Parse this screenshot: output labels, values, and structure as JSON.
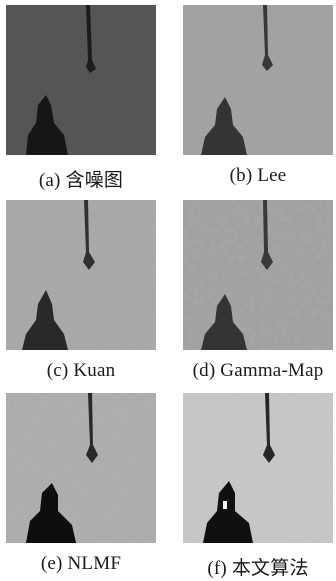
{
  "figure": {
    "panels": [
      {
        "caption": "(a) 含噪图"
      },
      {
        "caption": "(b) Lee"
      },
      {
        "caption": "(c) Kuan"
      },
      {
        "caption": "(d) Gamma-Map"
      },
      {
        "caption": "(e) NLMF"
      },
      {
        "caption": "(f) 本文算法"
      }
    ]
  }
}
